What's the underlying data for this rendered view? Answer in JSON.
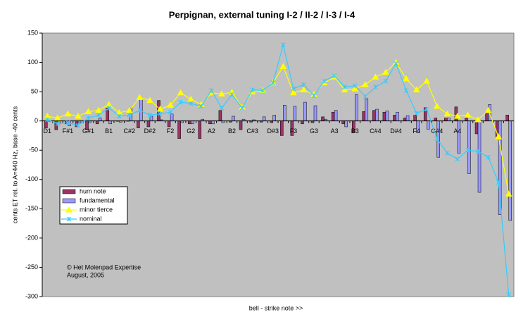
{
  "chart_data": {
    "type": "bar_line",
    "title": "Perpignan, external tuning I-2 / II-2 / I-3 / I-4",
    "y_label": "cents ET rel. to A=440 Hz, base -40 cents",
    "x_label": "bell - strike note >>",
    "annotations": [
      "© Het Molenpad Expertise",
      "August, 2005"
    ],
    "categories": [
      "D1",
      null,
      "F#1",
      null,
      "G#1",
      null,
      "B1",
      null,
      "C#2",
      null,
      "D#2",
      null,
      "F2",
      null,
      "G2",
      null,
      "A2",
      null,
      "B2",
      null,
      "C#3",
      null,
      "D#3",
      null,
      "F3",
      null,
      "G3",
      null,
      "A3",
      null,
      "B3",
      null,
      "C#4",
      null,
      "D#4",
      null,
      "F4",
      null,
      "G#4",
      null,
      "A4",
      null,
      null,
      null,
      null,
      null
    ],
    "ylim": [
      -300,
      150
    ],
    "yticks": [
      -300,
      -250,
      -200,
      -150,
      -100,
      -50,
      0,
      50,
      100,
      150
    ],
    "legend": "left",
    "series": [
      {
        "name": "hum note",
        "kind": "bar",
        "color": "#993366",
        "values": [
          -12,
          -15,
          -5,
          -10,
          -15,
          -5,
          22,
          0,
          0,
          -12,
          -10,
          35,
          -10,
          -30,
          -5,
          -30,
          -5,
          18,
          -2,
          -15,
          -2,
          -2,
          -3,
          -25,
          -25,
          -5,
          -3,
          7,
          15,
          -5,
          -20,
          16,
          18,
          15,
          10,
          5,
          10,
          23,
          5,
          5,
          24,
          5,
          -22,
          15,
          -27,
          10
        ]
      },
      {
        "name": "fundamental",
        "kind": "bar",
        "color": "#9999ff",
        "values": [
          0,
          -5,
          -8,
          -3,
          -3,
          5,
          -5,
          -2,
          22,
          38,
          8,
          2,
          12,
          -3,
          -5,
          3,
          -5,
          -3,
          8,
          3,
          2,
          7,
          10,
          27,
          25,
          32,
          26,
          3,
          18,
          -10,
          45,
          38,
          20,
          17,
          15,
          9,
          -20,
          -14,
          -62,
          5,
          -55,
          -90,
          -122,
          28,
          -160,
          -170
        ]
      },
      {
        "name": "minor tierce",
        "kind": "line",
        "color": "#ffff00",
        "values": [
          8,
          5,
          12,
          8,
          16,
          18,
          28,
          14,
          18,
          40,
          35,
          20,
          27,
          48,
          37,
          28,
          48,
          46,
          49,
          23,
          50,
          52,
          65,
          93,
          48,
          53,
          45,
          65,
          75,
          53,
          55,
          62,
          75,
          83,
          100,
          72,
          53,
          68,
          25,
          12,
          8,
          10,
          2,
          18,
          -27,
          -125
        ]
      },
      {
        "name": "nominal",
        "kind": "line",
        "color": "#33ccff",
        "values": [
          2,
          -5,
          -3,
          -8,
          5,
          10,
          22,
          8,
          10,
          18,
          10,
          12,
          15,
          32,
          30,
          25,
          52,
          22,
          45,
          22,
          53,
          52,
          65,
          130,
          55,
          62,
          43,
          68,
          77,
          58,
          60,
          42,
          58,
          68,
          98,
          52,
          13,
          20,
          -30,
          -55,
          -65,
          -50,
          -52,
          -62,
          -105,
          -297
        ]
      }
    ]
  }
}
